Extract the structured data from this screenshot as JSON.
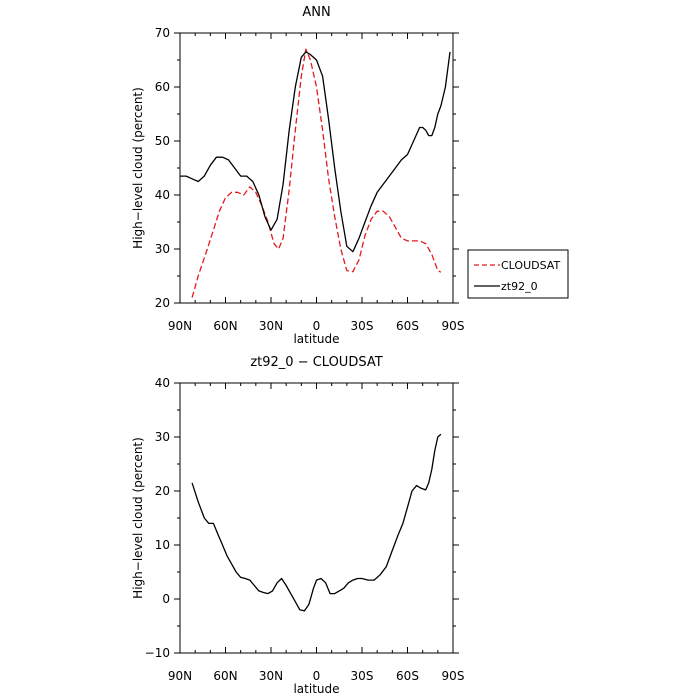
{
  "chart_data": [
    {
      "type": "line",
      "title": "ANN",
      "xlabel": "latitude",
      "ylabel": "High−level cloud (percent)",
      "xlim": [
        90,
        -90
      ],
      "ylim": [
        20,
        70
      ],
      "x_ticks": [
        90,
        60,
        30,
        0,
        -30,
        -60,
        -90
      ],
      "x_tick_labels": [
        "90N",
        "60N",
        "30N",
        "0",
        "30S",
        "60S",
        "90S"
      ],
      "y_ticks": [
        20,
        30,
        40,
        50,
        60,
        70
      ],
      "y_tick_labels": [
        "20",
        "30",
        "40",
        "50",
        "60",
        "70"
      ],
      "legend_position": "right",
      "series": [
        {
          "name": "CLOUDSAT",
          "color": "#e41a1c",
          "style": "dashed",
          "x": [
            82,
            78,
            72,
            68,
            64,
            60,
            56,
            52,
            48,
            44,
            40,
            36,
            32,
            28,
            25,
            22,
            18,
            14,
            10,
            7,
            4,
            0,
            -4,
            -8,
            -12,
            -16,
            -20,
            -24,
            -28,
            -32,
            -36,
            -40,
            -44,
            -48,
            -52,
            -56,
            -60,
            -64,
            -68,
            -72,
            -76,
            -80,
            -82
          ],
          "y": [
            21,
            25,
            30,
            33.5,
            37,
            39.5,
            40.5,
            40.5,
            40,
            41.5,
            40.5,
            38,
            35,
            31,
            30,
            32,
            41,
            52,
            62,
            67,
            65,
            60,
            52,
            43,
            36,
            30,
            26,
            25.8,
            28,
            32.5,
            35.5,
            37,
            37,
            36,
            34,
            32,
            31.5,
            31.5,
            31.5,
            31,
            29,
            26,
            25.7
          ]
        },
        {
          "name": "zt92_0",
          "color": "#000000",
          "style": "solid",
          "x": [
            90,
            86,
            82,
            78,
            74,
            70,
            66,
            62,
            58,
            54,
            50,
            46,
            42,
            38,
            34,
            30,
            26,
            22,
            18,
            14,
            10,
            7,
            4,
            0,
            -4,
            -8,
            -12,
            -16,
            -20,
            -24,
            -28,
            -32,
            -36,
            -40,
            -44,
            -48,
            -52,
            -56,
            -60,
            -64,
            -68,
            -70,
            -72,
            -74,
            -76,
            -78,
            -80,
            -82,
            -85,
            -88
          ],
          "y": [
            43.5,
            43.5,
            43,
            42.5,
            43.5,
            45.5,
            47,
            47,
            46.5,
            45,
            43.5,
            43.5,
            42.5,
            40,
            36,
            33.5,
            35.5,
            42,
            52,
            60,
            65.5,
            66.5,
            66,
            65,
            62,
            54,
            45,
            37,
            30.5,
            29.5,
            32,
            35,
            38,
            40.5,
            42,
            43.5,
            45,
            46.5,
            47.5,
            50,
            52.5,
            52.5,
            52,
            51,
            51,
            52.5,
            55,
            56.5,
            60,
            66.5
          ]
        }
      ]
    },
    {
      "type": "line",
      "title": "zt92_0 − CLOUDSAT",
      "xlabel": "latitude",
      "ylabel": "High−level cloud (percent)",
      "xlim": [
        90,
        -90
      ],
      "ylim": [
        -10,
        40
      ],
      "x_ticks": [
        90,
        60,
        30,
        0,
        -30,
        -60,
        -90
      ],
      "x_tick_labels": [
        "90N",
        "60N",
        "30N",
        "0",
        "30S",
        "60S",
        "90S"
      ],
      "y_ticks": [
        -10,
        0,
        10,
        20,
        30,
        40
      ],
      "y_tick_labels": [
        "−10",
        "0",
        "10",
        "20",
        "30",
        "40"
      ],
      "series": [
        {
          "name": "",
          "color": "#000000",
          "style": "solid",
          "x": [
            82,
            78,
            74,
            71,
            68,
            65,
            62,
            59,
            56,
            53,
            50,
            47,
            44,
            41,
            38,
            35,
            32,
            29,
            26,
            23,
            20,
            17,
            14,
            11,
            8,
            5,
            2,
            0,
            -3,
            -6,
            -9,
            -12,
            -15,
            -18,
            -21,
            -24,
            -27,
            -30,
            -34,
            -38,
            -42,
            -46,
            -50,
            -54,
            -57,
            -60,
            -63,
            -66,
            -69,
            -72,
            -74,
            -76,
            -78,
            -80,
            -82
          ],
          "y": [
            21.5,
            18,
            15,
            14,
            14,
            12,
            10,
            8,
            6.5,
            5,
            4,
            3.8,
            3.5,
            2.5,
            1.5,
            1.2,
            1,
            1.5,
            3,
            3.8,
            2.5,
            1,
            -0.5,
            -2,
            -2.2,
            -1,
            2,
            3.5,
            3.8,
            3,
            1,
            1,
            1.5,
            2,
            3,
            3.5,
            3.8,
            3.8,
            3.5,
            3.5,
            4.5,
            6,
            9,
            12,
            14,
            17,
            20,
            21,
            20.5,
            20.2,
            21.5,
            24,
            27.5,
            30,
            30.5
          ]
        }
      ]
    }
  ],
  "legend": {
    "entries": [
      {
        "label": "CLOUDSAT",
        "color": "#e41a1c",
        "style": "dashed"
      },
      {
        "label": "zt92_0",
        "color": "#000000",
        "style": "solid"
      }
    ]
  }
}
